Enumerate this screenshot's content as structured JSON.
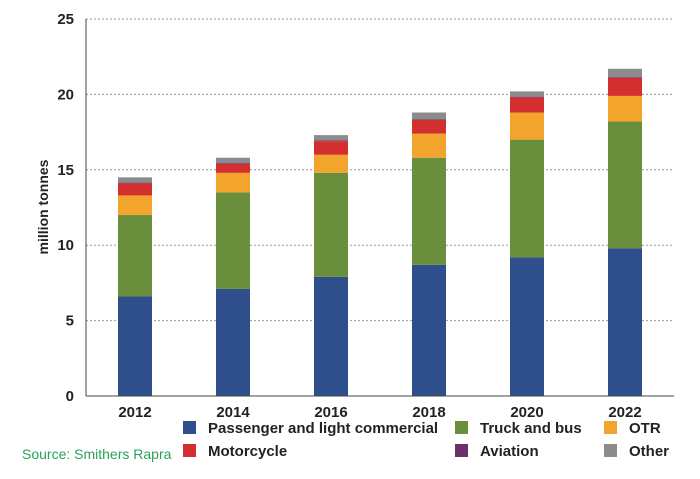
{
  "source": "Source: Smithers Rapra",
  "chart_data": {
    "type": "bar",
    "stacked": true,
    "title": "",
    "xlabel": "",
    "ylabel": "million tonnes",
    "ylim": [
      0,
      25
    ],
    "yticks": [
      0,
      5,
      10,
      15,
      20,
      25
    ],
    "grid": true,
    "legend_position": "bottom",
    "categories": [
      "2012",
      "2014",
      "2016",
      "2018",
      "2020",
      "2022"
    ],
    "series": [
      {
        "name": "Passenger and light commercial",
        "color": "#2e4f8c",
        "values": [
          6.6,
          7.1,
          7.9,
          8.7,
          9.2,
          9.8
        ]
      },
      {
        "name": "Truck and bus",
        "color": "#6a8f3c",
        "values": [
          5.4,
          6.4,
          6.9,
          7.1,
          7.8,
          8.4
        ]
      },
      {
        "name": "OTR",
        "color": "#f2a42c",
        "values": [
          1.3,
          1.3,
          1.2,
          1.6,
          1.8,
          1.7
        ]
      },
      {
        "name": "Motorcycle",
        "color": "#d42f2f",
        "values": [
          0.8,
          0.6,
          0.9,
          0.9,
          1.0,
          1.2
        ]
      },
      {
        "name": "Aviation",
        "color": "#6b2f6b",
        "values": [
          0.05,
          0.05,
          0.05,
          0.05,
          0.05,
          0.05
        ]
      },
      {
        "name": "Other",
        "color": "#8c8c8c",
        "values": [
          0.35,
          0.35,
          0.35,
          0.45,
          0.35,
          0.55
        ]
      }
    ]
  }
}
